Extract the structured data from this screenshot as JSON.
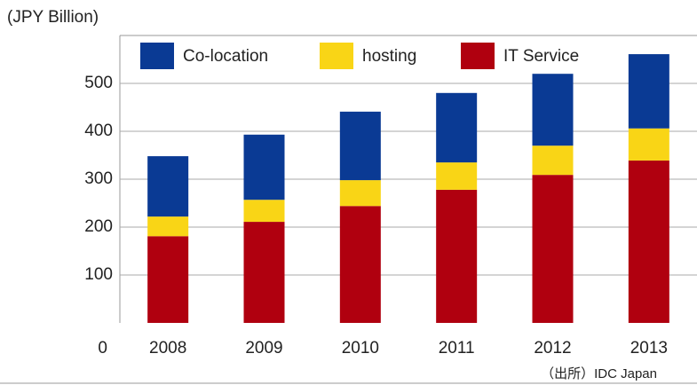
{
  "chart_data": {
    "type": "stacked_bar",
    "y_axis_label": "(JPY Billion)",
    "source": "（出所）IDC Japan",
    "categories": [
      "2008",
      "2009",
      "2010",
      "2011",
      "2012",
      "2013"
    ],
    "series": [
      {
        "name": "IT Service",
        "color": "#b0000f",
        "values": [
          181,
          211,
          244,
          278,
          309,
          339
        ]
      },
      {
        "name": "hosting",
        "color": "#f9d516",
        "values": [
          41,
          46,
          54,
          57,
          61,
          67
        ]
      },
      {
        "name": "Co-location",
        "color": "#0a3a94",
        "values": [
          126,
          136,
          143,
          145,
          150,
          155
        ]
      }
    ],
    "legend_order": [
      2,
      1,
      0
    ],
    "ylim": [
      0,
      600
    ],
    "yticks": [
      0,
      100,
      200,
      300,
      400,
      500
    ],
    "grid": true
  }
}
